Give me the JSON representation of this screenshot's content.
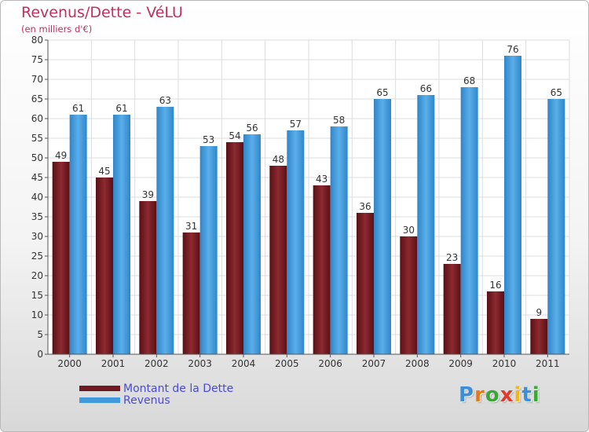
{
  "header": {
    "title": "Revenus/Dette - VéLU",
    "subtitle": "(en milliers d'€)"
  },
  "legend": {
    "items": [
      {
        "label": "Montant de la Dette",
        "color": "#7a1c22"
      },
      {
        "label": "Revenus",
        "color": "#3f99dc"
      }
    ]
  },
  "logo": {
    "text": "Proxiti",
    "letters": [
      {
        "ch": "P",
        "color": "#3a8fd8"
      },
      {
        "ch": "r",
        "color": "#e07a1a"
      },
      {
        "ch": "o",
        "color": "#3aa838"
      },
      {
        "ch": "x",
        "color": "#e03a2a"
      },
      {
        "ch": "i",
        "color": "#f2b51a"
      },
      {
        "ch": "t",
        "color": "#3a8fd8"
      },
      {
        "ch": "i",
        "color": "#3aa838"
      }
    ]
  },
  "chart_data": {
    "type": "bar",
    "title": "Revenus/Dette - VéLU",
    "subtitle": "(en milliers d'€)",
    "xlabel": "",
    "ylabel": "",
    "categories": [
      "2000",
      "2001",
      "2002",
      "2003",
      "2004",
      "2005",
      "2006",
      "2007",
      "2008",
      "2009",
      "2010",
      "2011"
    ],
    "series": [
      {
        "name": "Montant de la Dette",
        "color": "#7a1c22",
        "values": [
          49,
          45,
          39,
          31,
          54,
          48,
          43,
          36,
          30,
          23,
          16,
          9
        ]
      },
      {
        "name": "Revenus",
        "color": "#3f99dc",
        "values": [
          61,
          61,
          63,
          53,
          56,
          57,
          58,
          65,
          66,
          68,
          76,
          65
        ]
      }
    ],
    "ylim": [
      0,
      80
    ],
    "yticks": [
      0,
      5,
      10,
      15,
      20,
      25,
      30,
      35,
      40,
      45,
      50,
      55,
      60,
      65,
      70,
      75,
      80
    ],
    "grid": true,
    "legend_position": "bottom-left"
  }
}
